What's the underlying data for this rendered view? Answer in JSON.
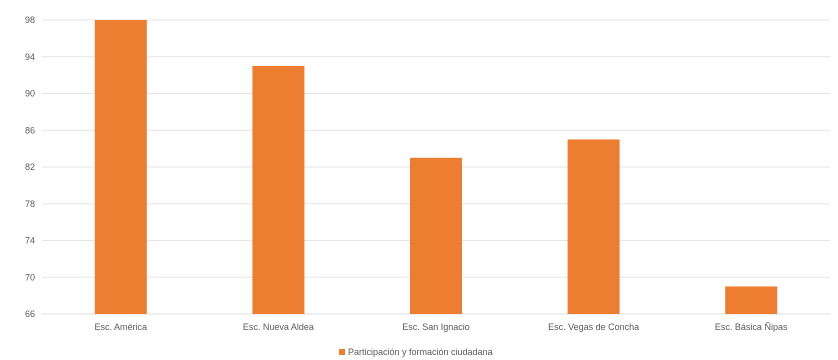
{
  "chart_data": {
    "type": "bar",
    "categories": [
      "Esc. América",
      "Esc. Nueva Aldea",
      "Esc. San Ignacio",
      "Esc. Vegas de Concha",
      "Esc. Básica Ñipas"
    ],
    "series": [
      {
        "name": "Participación y formación ciudadana",
        "values": [
          98,
          93,
          83,
          85,
          69
        ]
      }
    ],
    "yticks": [
      66,
      70,
      74,
      78,
      82,
      86,
      90,
      94,
      98
    ],
    "ylim": [
      66,
      98
    ],
    "grid": true,
    "legend": "bottom",
    "color": "#ED7D31",
    "gridColor": "#E5E5E5"
  }
}
